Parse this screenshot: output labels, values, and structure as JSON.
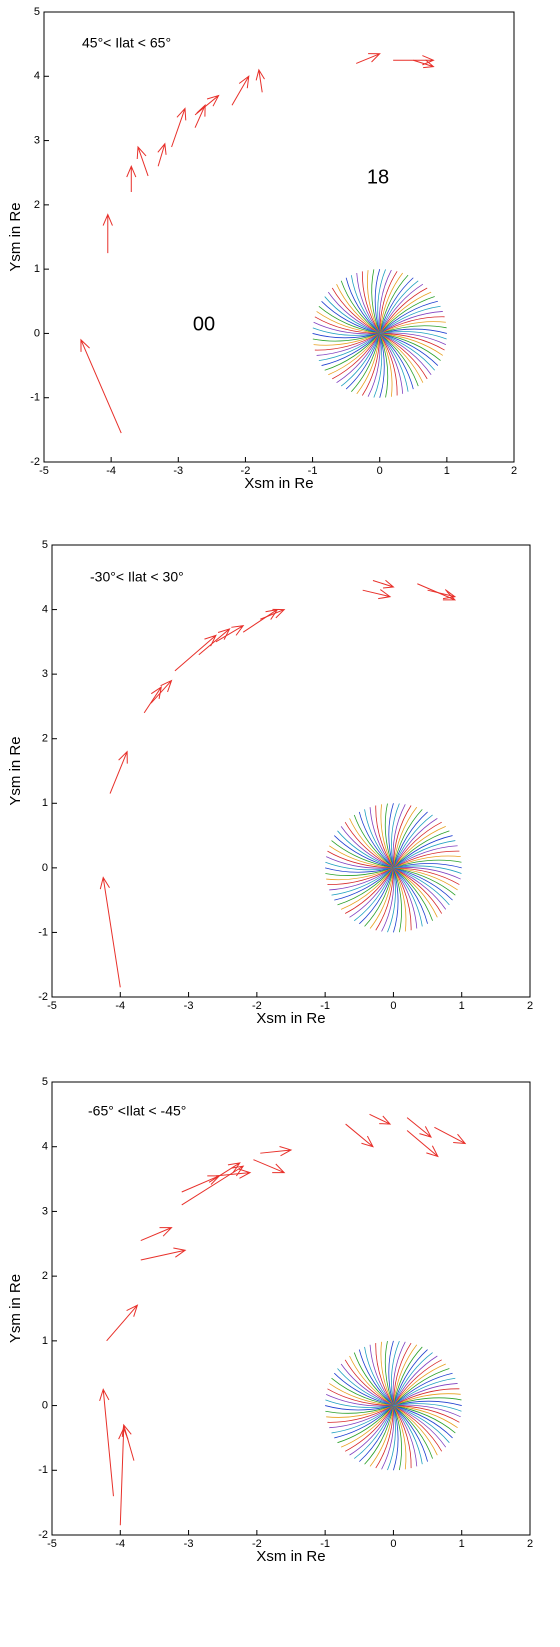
{
  "chart_data": [
    {
      "type": "quiver",
      "title": "45°< Ilat < 65°",
      "xlabel": "Xsm in Re",
      "ylabel": "Ysm in Re",
      "annotations": [
        "18",
        "00"
      ],
      "xlim": [
        -5,
        2
      ],
      "ylim": [
        -2,
        5
      ],
      "xticks": [
        -5,
        -4,
        -3,
        -2,
        -1,
        0,
        1,
        2
      ],
      "yticks": [
        -2,
        -1,
        0,
        1,
        2,
        3,
        4,
        5
      ],
      "series": [
        {
          "color": "#e8302a",
          "x": [
            -3.85,
            -4.05,
            -3.7,
            -3.45,
            -3.3,
            -3.1,
            -2.75,
            -2.75,
            -2.2,
            -1.75,
            -0.35,
            0.2,
            0.5
          ],
          "y": [
            -1.55,
            1.25,
            2.2,
            2.45,
            2.6,
            2.9,
            3.2,
            3.4,
            3.55,
            3.75,
            4.2,
            4.25,
            4.25
          ],
          "u": [
            -0.6,
            0,
            0,
            -0.15,
            0.1,
            0.2,
            0.15,
            0.35,
            0.25,
            -0.05,
            0.35,
            0.6,
            0.3
          ],
          "v": [
            1.45,
            0.6,
            0.4,
            0.45,
            0.35,
            0.6,
            0.35,
            0.3,
            0.45,
            0.35,
            0.15,
            0,
            -0.1
          ]
        }
      ]
    },
    {
      "type": "quiver",
      "title": "-30°< Ilat < 30°",
      "xlabel": "Xsm in Re",
      "ylabel": "Ysm in Re",
      "xlim": [
        -5,
        2
      ],
      "ylim": [
        -2,
        5
      ],
      "xticks": [
        -5,
        -4,
        -3,
        -2,
        -1,
        0,
        1,
        2
      ],
      "yticks": [
        -2,
        -1,
        0,
        1,
        2,
        3,
        4,
        5
      ],
      "series": [
        {
          "color": "#e8302a",
          "x": [
            -4.0,
            -4.15,
            -3.65,
            -3.55,
            -3.2,
            -2.85,
            -2.6,
            -2.2,
            -1.95,
            -0.45,
            -0.3,
            0.35,
            0.5
          ],
          "y": [
            -1.85,
            1.15,
            2.4,
            2.55,
            3.05,
            3.3,
            3.5,
            3.65,
            3.85,
            4.3,
            4.45,
            4.4,
            4.3
          ],
          "u": [
            -0.25,
            0.25,
            0.25,
            0.3,
            0.6,
            0.45,
            0.4,
            0.5,
            0.35,
            0.4,
            0.3,
            0.55,
            0.4
          ],
          "v": [
            1.7,
            0.65,
            0.4,
            0.35,
            0.55,
            0.4,
            0.25,
            0.35,
            0.15,
            -0.1,
            -0.1,
            -0.25,
            -0.1
          ]
        }
      ]
    },
    {
      "type": "quiver",
      "title": "-65° <Ilat < -45°",
      "xlabel": "Xsm in Re",
      "ylabel": "Ysm in Re",
      "xlim": [
        -5,
        2
      ],
      "ylim": [
        -2,
        5
      ],
      "xticks": [
        -5,
        -4,
        -3,
        -2,
        -1,
        0,
        1,
        2
      ],
      "yticks": [
        -2,
        -1,
        0,
        1,
        2,
        3,
        4,
        5
      ],
      "series": [
        {
          "color": "#e8302a",
          "x": [
            -4.1,
            -4.0,
            -3.8,
            -4.2,
            -3.7,
            -3.7,
            -3.1,
            -3.1,
            -2.7,
            -2.6,
            -2.05,
            -1.95,
            -0.7,
            -0.35,
            0.2,
            0.2,
            0.6
          ],
          "y": [
            -1.4,
            -1.85,
            -0.85,
            1.0,
            2.25,
            2.55,
            3.1,
            3.3,
            3.45,
            3.55,
            3.8,
            3.9,
            4.35,
            4.5,
            4.45,
            4.25,
            4.3
          ],
          "u": [
            -0.15,
            0.05,
            -0.15,
            0.45,
            0.65,
            0.45,
            0.9,
            0.55,
            0.45,
            0.5,
            0.45,
            0.45,
            0.4,
            0.3,
            0.35,
            0.45,
            0.45
          ],
          "v": [
            1.65,
            1.5,
            0.55,
            0.55,
            0.15,
            0.2,
            0.6,
            0.25,
            0.3,
            0.05,
            -0.2,
            0.05,
            -0.35,
            -0.15,
            -0.3,
            -0.4,
            -0.25
          ]
        }
      ]
    }
  ]
}
